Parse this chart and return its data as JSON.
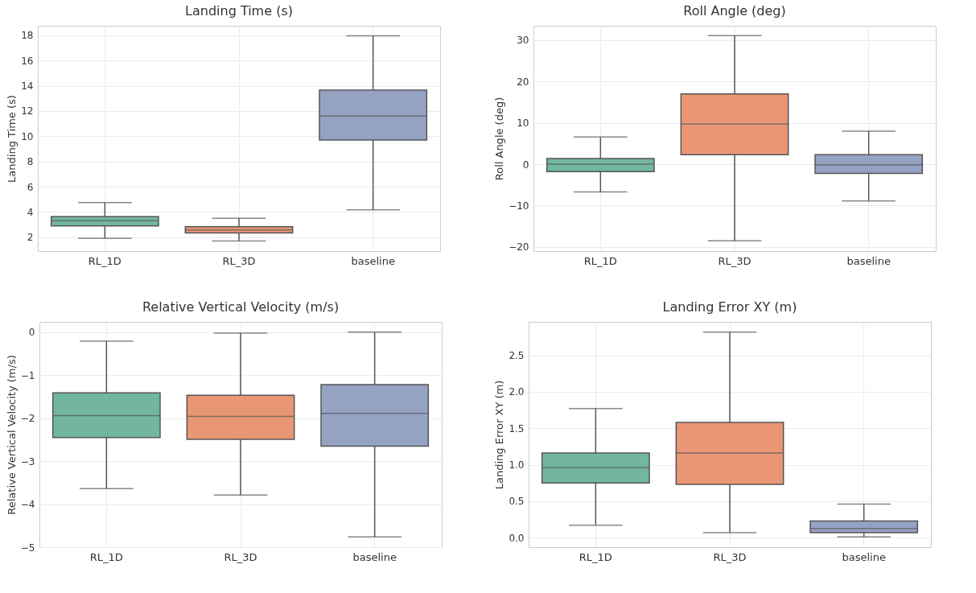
{
  "chart_data": [
    {
      "type": "box",
      "title": "Landing Time (s)",
      "ylabel": "Landing Time (s)",
      "categories": [
        "RL_1D",
        "RL_3D",
        "baseline"
      ],
      "colors": [
        "#72b6a1",
        "#e99675",
        "#95a3c3"
      ],
      "ylim": [
        0.9,
        18.75
      ],
      "yticks": [
        2,
        4,
        6,
        8,
        10,
        12,
        14,
        16,
        18
      ],
      "grid": true,
      "boxes": [
        {
          "low": 1.9,
          "q1": 2.9,
          "median": 3.3,
          "q3": 3.63,
          "high": 4.74
        },
        {
          "low": 1.7,
          "q1": 2.33,
          "median": 2.57,
          "q3": 2.83,
          "high": 3.5
        },
        {
          "low": 4.17,
          "q1": 9.7,
          "median": 11.6,
          "q3": 13.65,
          "high": 17.95
        }
      ]
    },
    {
      "type": "box",
      "title": "Roll Angle (deg)",
      "ylabel": "Roll Angle (deg)",
      "categories": [
        "RL_1D",
        "RL_3D",
        "baseline"
      ],
      "colors": [
        "#72b6a1",
        "#e99675",
        "#95a3c3"
      ],
      "ylim": [
        -21,
        33.5
      ],
      "yticks": [
        -20,
        -10,
        0,
        10,
        20,
        30
      ],
      "grid": true,
      "boxes": [
        {
          "low": -6.7,
          "q1": -1.8,
          "median": 0,
          "q3": 1.4,
          "high": 6.6
        },
        {
          "low": -18.5,
          "q1": 2.3,
          "median": 9.7,
          "q3": 17.0,
          "high": 31.1
        },
        {
          "low": -8.9,
          "q1": -2.2,
          "median": -0.15,
          "q3": 2.3,
          "high": 8.0
        }
      ]
    },
    {
      "type": "box",
      "title": "Relative Vertical Velocity (m/s)",
      "ylabel": "Relative Vertical Velocity (m/s)",
      "categories": [
        "RL_1D",
        "RL_3D",
        "baseline"
      ],
      "colors": [
        "#72b6a1",
        "#e99675",
        "#95a3c3"
      ],
      "ylim": [
        -5,
        0.24
      ],
      "yticks": [
        -5,
        -4,
        -3,
        -2,
        -1,
        0
      ],
      "grid": true,
      "boxes": [
        {
          "low": -3.64,
          "q1": -2.45,
          "median": -1.94,
          "q3": -1.41,
          "high": -0.21
        },
        {
          "low": -3.79,
          "q1": -2.49,
          "median": -1.96,
          "q3": -1.47,
          "high": -0.02
        },
        {
          "low": -4.76,
          "q1": -2.65,
          "median": -1.89,
          "q3": -1.22,
          "high": 0.0
        }
      ]
    },
    {
      "type": "box",
      "title": "Landing Error XY (m)",
      "ylabel": "Landing Error XY (m)",
      "categories": [
        "RL_1D",
        "RL_3D",
        "baseline"
      ],
      "colors": [
        "#72b6a1",
        "#e99675",
        "#95a3c3"
      ],
      "ylim": [
        -0.13,
        2.96
      ],
      "yticks": [
        {
          "value": 0,
          "label": "0.0"
        },
        0.5,
        {
          "value": 1,
          "label": "1.0"
        },
        1.5,
        {
          "value": 2,
          "label": "2.0"
        },
        2.5
      ],
      "grid": true,
      "boxes": [
        {
          "low": 0.17,
          "q1": 0.75,
          "median": 0.96,
          "q3": 1.16,
          "high": 1.77
        },
        {
          "low": 0.07,
          "q1": 0.73,
          "median": 1.16,
          "q3": 1.58,
          "high": 2.82
        },
        {
          "low": 0.01,
          "q1": 0.07,
          "median": 0.125,
          "q3": 0.23,
          "high": 0.46
        }
      ]
    }
  ]
}
